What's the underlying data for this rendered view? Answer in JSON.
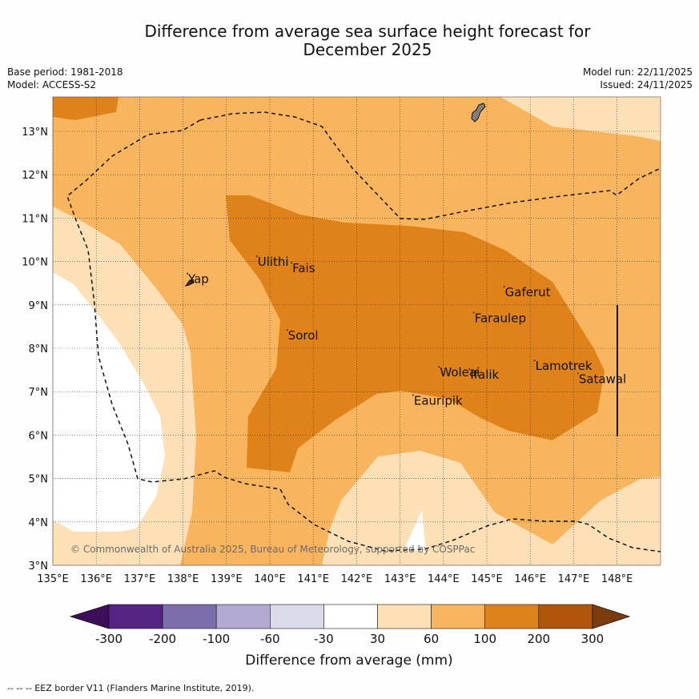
{
  "title": {
    "line1": "Difference from average sea surface height forecast for",
    "line2": "December 2025"
  },
  "meta": {
    "base_period": "Base period: 1981-2018",
    "model": "Model: ACCESS-S2",
    "model_run": "Model run: 22/11/2025",
    "issued": "Issued: 24/11/2025"
  },
  "axes": {
    "lon_ticks": [
      "135°E",
      "136°E",
      "137°E",
      "138°E",
      "139°E",
      "140°E",
      "141°E",
      "142°E",
      "143°E",
      "144°E",
      "145°E",
      "146°E",
      "147°E",
      "148°E"
    ],
    "lat_ticks": [
      "3°N",
      "4°N",
      "5°N",
      "6°N",
      "7°N",
      "8°N",
      "9°N",
      "10°N",
      "11°N",
      "12°N",
      "13°N"
    ]
  },
  "places": [
    {
      "name": "Yap",
      "lon": 138.1,
      "lat": 9.5
    },
    {
      "name": "Ulithi",
      "lon": 139.7,
      "lat": 9.9
    },
    {
      "name": "Fais",
      "lon": 140.5,
      "lat": 9.75
    },
    {
      "name": "Gaferut",
      "lon": 145.4,
      "lat": 9.2
    },
    {
      "name": "Faraulep",
      "lon": 144.7,
      "lat": 8.6
    },
    {
      "name": "Sorol",
      "lon": 140.4,
      "lat": 8.2
    },
    {
      "name": "Woleai",
      "lon": 143.9,
      "lat": 7.35
    },
    {
      "name": "Ifalik",
      "lon": 144.6,
      "lat": 7.3
    },
    {
      "name": "Lamotrek",
      "lon": 146.1,
      "lat": 7.5
    },
    {
      "name": "Satawal",
      "lon": 147.1,
      "lat": 7.2
    },
    {
      "name": "Eauripik",
      "lon": 143.3,
      "lat": 6.7
    }
  ],
  "copyright": "© Commonwealth of Australia 2025, Bureau of Meteorology, supported by COSPPac",
  "colorbar": {
    "label": "Difference from average (mm)",
    "ticks": [
      "-300",
      "-200",
      "-100",
      "-60",
      "-30",
      "30",
      "60",
      "100",
      "200",
      "300"
    ],
    "colors": [
      "#3d0f5a",
      "#552383",
      "#7c6dab",
      "#b2aad2",
      "#dadaeb",
      "#ffffff",
      "#fde0b6",
      "#f9b45e",
      "#e0821a",
      "#b05509",
      "#7b3b0c"
    ]
  },
  "footnote": "--  --  -- EEZ border V11 (Flanders Marine Institute, 2019).",
  "legend_colors": {
    "land": "#808080",
    "border": "#111111",
    "grid": "#333333"
  }
}
